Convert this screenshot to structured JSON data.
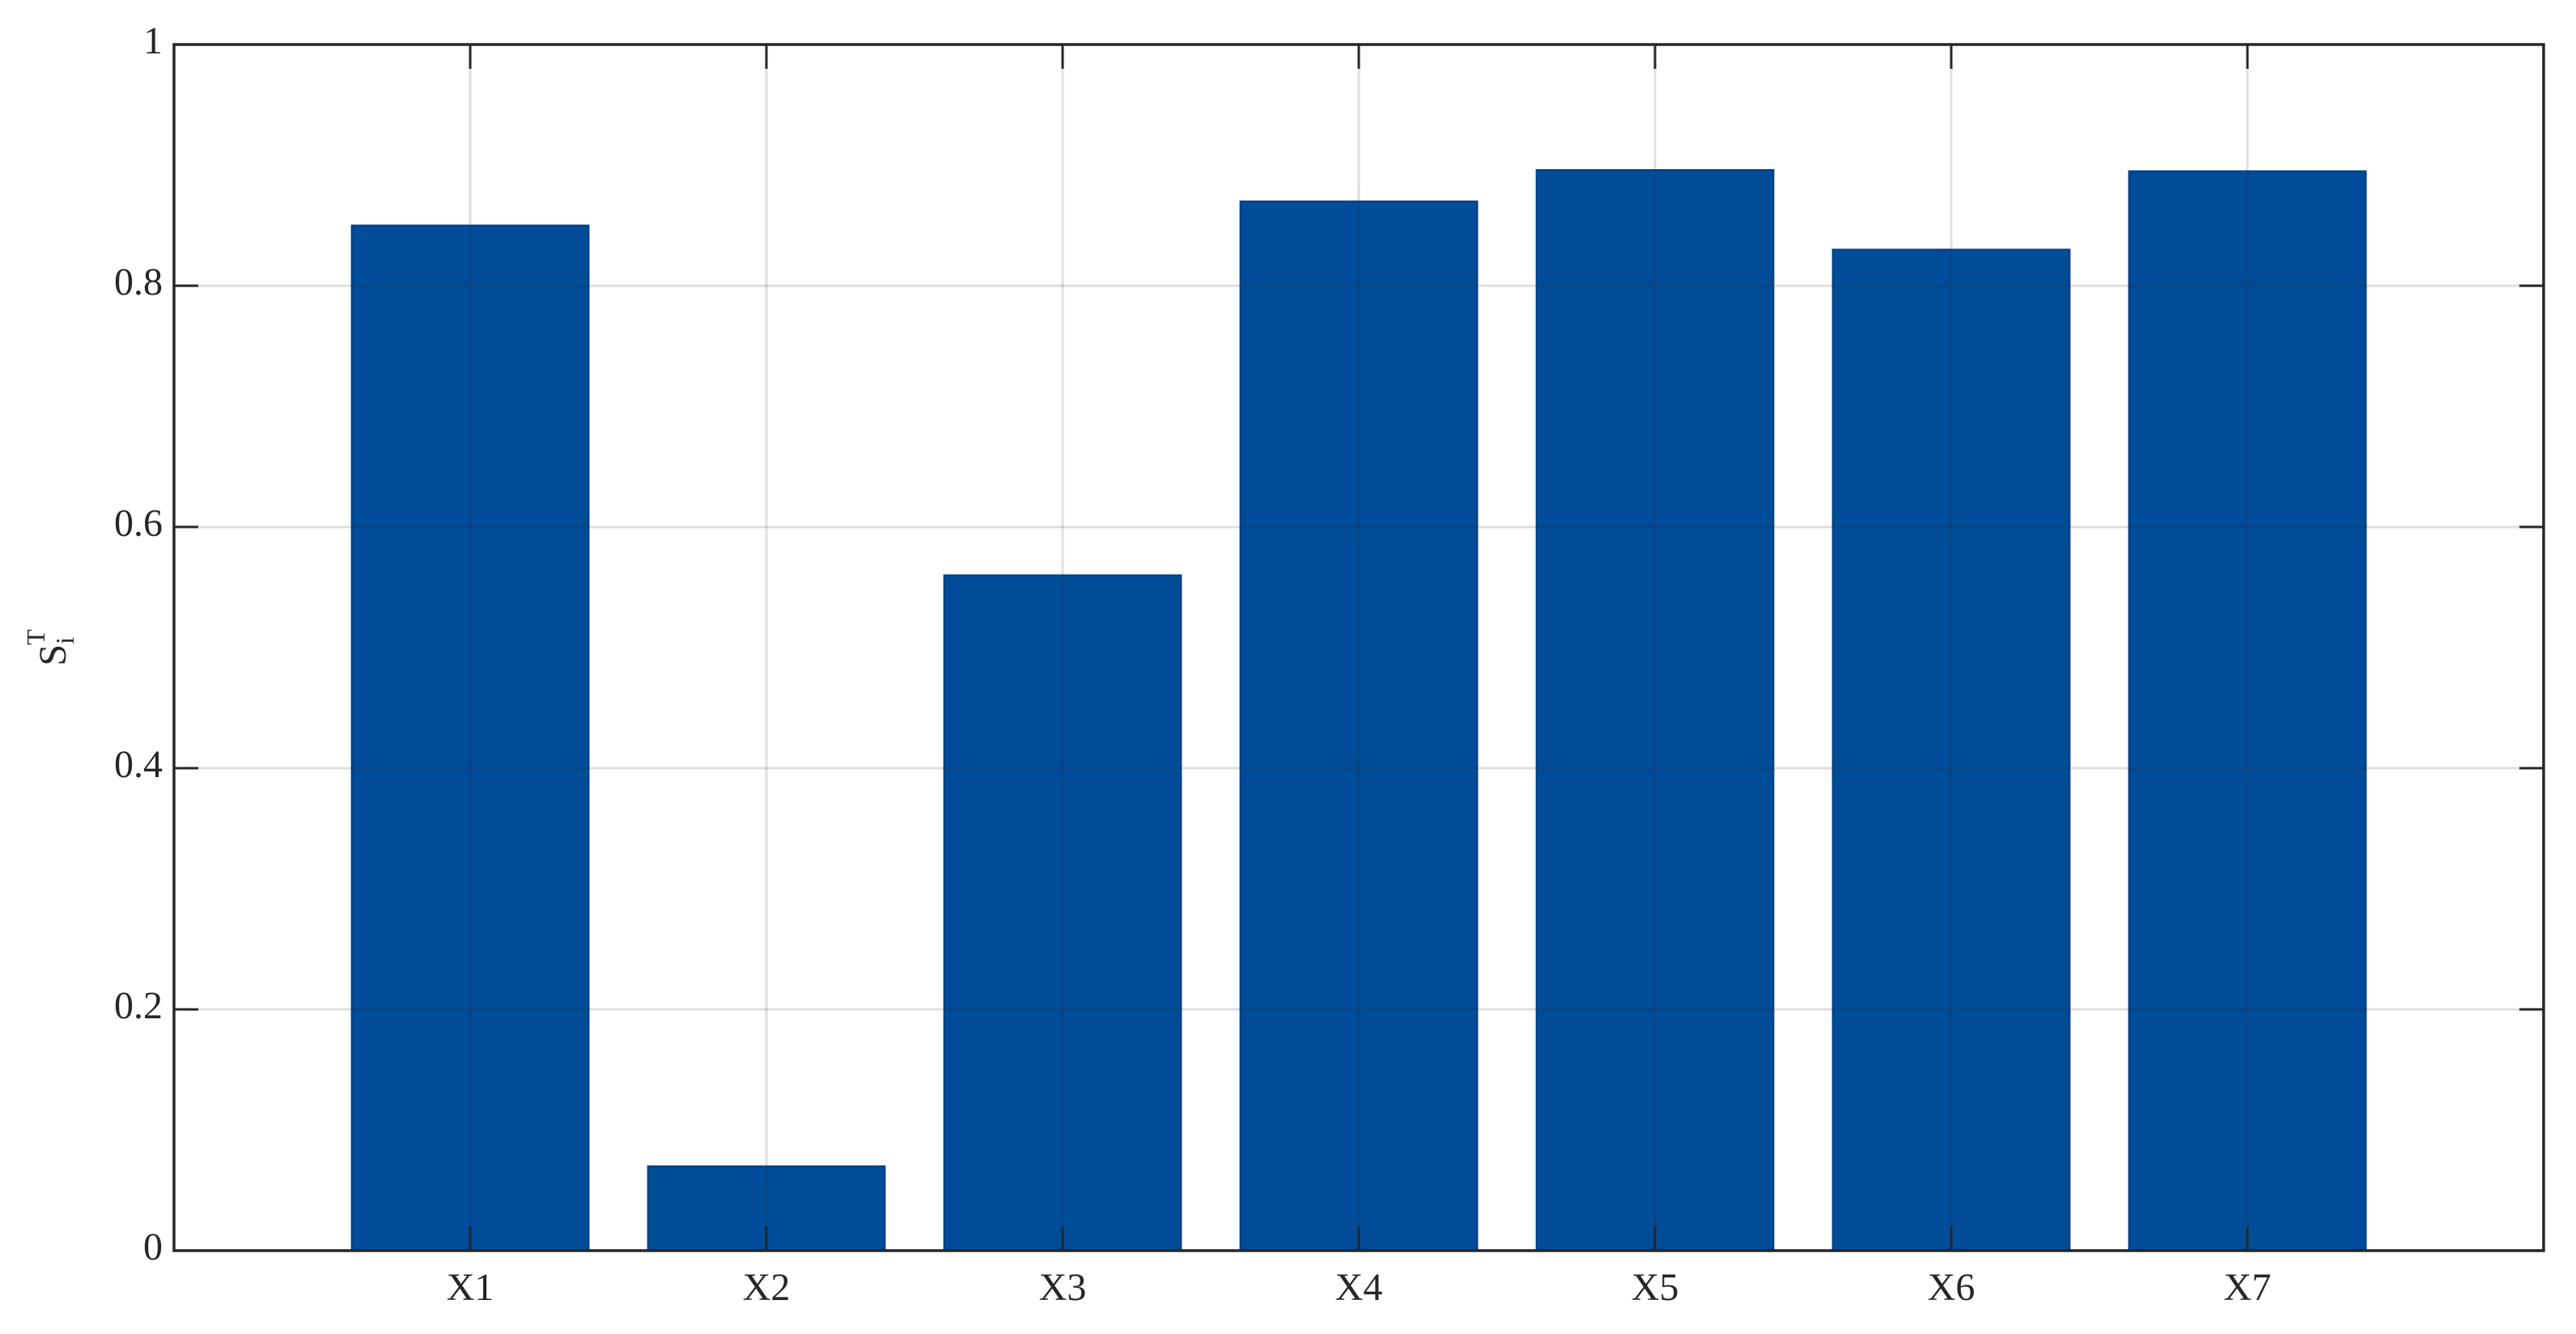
{
  "chart_data": {
    "type": "bar",
    "ylabel": {
      "base": "S",
      "sub": "i",
      "sup": "T"
    },
    "categories": [
      "X1",
      "X2",
      "X3",
      "X4",
      "X5",
      "X6",
      "X7"
    ],
    "values": [
      0.85,
      0.07,
      0.56,
      0.87,
      0.896,
      0.83,
      0.895
    ],
    "color": "#004c99",
    "ylim": [
      0,
      1
    ],
    "yticks": [
      0,
      0.2,
      0.4,
      0.6,
      0.8,
      1
    ],
    "grid": true
  }
}
